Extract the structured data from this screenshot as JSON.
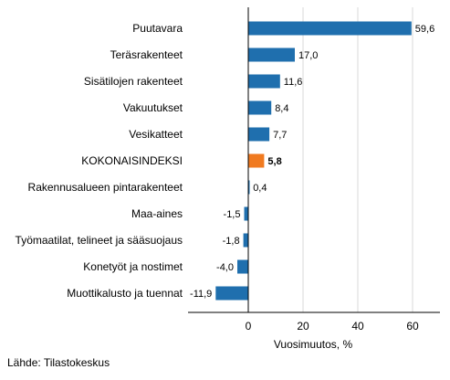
{
  "chart_data": {
    "type": "bar",
    "orientation": "horizontal",
    "categories": [
      "Puutavara",
      "Teräsrakenteet",
      "Sisätilojen rakenteet",
      "Vakuutukset",
      "Vesikatteet",
      "KOKONAISINDEKSI",
      "Rakennusalueen pintarakenteet",
      "Maa-aines",
      "Työmaatilat, telineet ja sääsuojaus",
      "Konetyöt ja nostimet",
      "Muottikalusto ja tuennat"
    ],
    "values": [
      59.6,
      17.0,
      11.6,
      8.4,
      7.7,
      5.8,
      0.4,
      -1.5,
      -1.8,
      -4.0,
      -11.9
    ],
    "value_labels": [
      "59,6",
      "17,0",
      "11,6",
      "8,4",
      "7,7",
      "5,8",
      "0,4",
      "-1,5",
      "-1,8",
      "-4,0",
      "-11,9"
    ],
    "highlight": "KOKONAISINDEKSI",
    "xlabel": "Vuosimuutos, %",
    "ylabel": "",
    "xlim": [
      -22,
      70
    ],
    "xticks": [
      0,
      20,
      40,
      60
    ],
    "grid": true,
    "colors": {
      "bar": "#1f6fae",
      "highlight": "#f07a20",
      "grid": "#d9d9d9",
      "axis": "#000000"
    }
  },
  "source": "Lähde: Tilastokeskus"
}
